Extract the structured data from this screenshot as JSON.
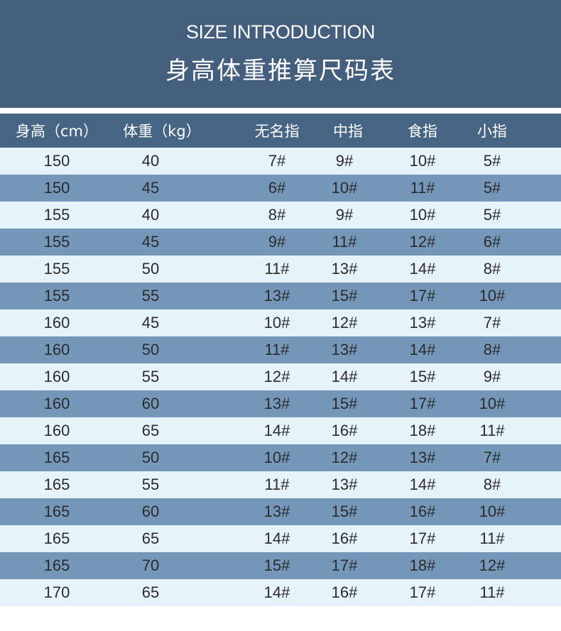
{
  "title_en": "SIZE INTRODUCTION",
  "title_cn": "身高体重推算尺码表",
  "colors": {
    "banner": "#435f7d",
    "header_row": "#466585",
    "row_light": "#e7f3fb",
    "row_dark": "#7598ba"
  },
  "headers": [
    "身高（cm）",
    "体重（kg）",
    "无名指",
    "中指",
    "食指",
    "小指"
  ],
  "rows": [
    [
      "150",
      "40",
      "7#",
      "9#",
      "10#",
      "5#"
    ],
    [
      "150",
      "45",
      "6#",
      "10#",
      "11#",
      "5#"
    ],
    [
      "155",
      "40",
      "8#",
      "9#",
      "10#",
      "5#"
    ],
    [
      "155",
      "45",
      "9#",
      "11#",
      "12#",
      "6#"
    ],
    [
      "155",
      "50",
      "11#",
      "13#",
      "14#",
      "8#"
    ],
    [
      "155",
      "55",
      "13#",
      "15#",
      "17#",
      "10#"
    ],
    [
      "160",
      "45",
      "10#",
      "12#",
      "13#",
      "7#"
    ],
    [
      "160",
      "50",
      "11#",
      "13#",
      "14#",
      "8#"
    ],
    [
      "160",
      "55",
      "12#",
      "14#",
      "15#",
      "9#"
    ],
    [
      "160",
      "60",
      "13#",
      "15#",
      "17#",
      "10#"
    ],
    [
      "160",
      "65",
      "14#",
      "16#",
      "18#",
      "11#"
    ],
    [
      "165",
      "50",
      "10#",
      "12#",
      "13#",
      "7#"
    ],
    [
      "165",
      "55",
      "11#",
      "13#",
      "14#",
      "8#"
    ],
    [
      "165",
      "60",
      "13#",
      "15#",
      "16#",
      "10#"
    ],
    [
      "165",
      "65",
      "14#",
      "16#",
      "17#",
      "11#"
    ],
    [
      "165",
      "70",
      "15#",
      "17#",
      "18#",
      "12#"
    ],
    [
      "170",
      "65",
      "14#",
      "16#",
      "17#",
      "11#"
    ]
  ]
}
